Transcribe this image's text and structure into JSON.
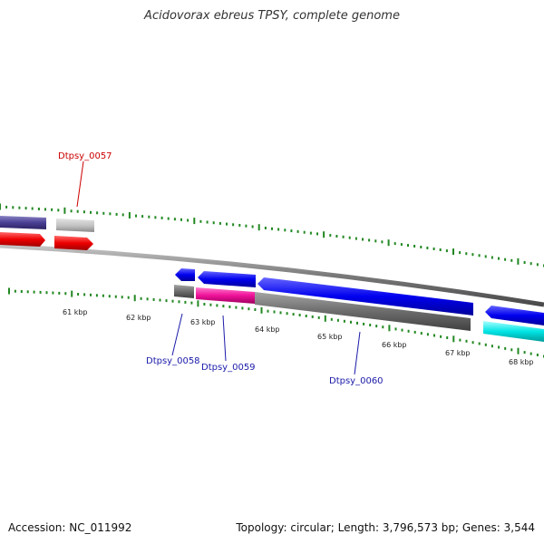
{
  "title": "Acidovorax ebreus TPSY, complete genome",
  "footer": {
    "accession": "Accession: NC_011992",
    "summary": "Topology: circular; Length: 3,796,573 bp; Genes: 3,544"
  },
  "scale_labels": [
    "61 kbp",
    "62 kbp",
    "63 kbp",
    "64 kbp",
    "65 kbp",
    "66 kbp",
    "67 kbp",
    "68 kbp"
  ],
  "gene_labels": {
    "g0057": "Dtpsy_0057",
    "g0058": "Dtpsy_0058",
    "g0059": "Dtpsy_0059",
    "g0060": "Dtpsy_0060"
  },
  "colors": {
    "ticks": "#228822",
    "red_label": "#cc0000",
    "blue_label": "#1a1aaa",
    "backbone": "#888888"
  }
}
